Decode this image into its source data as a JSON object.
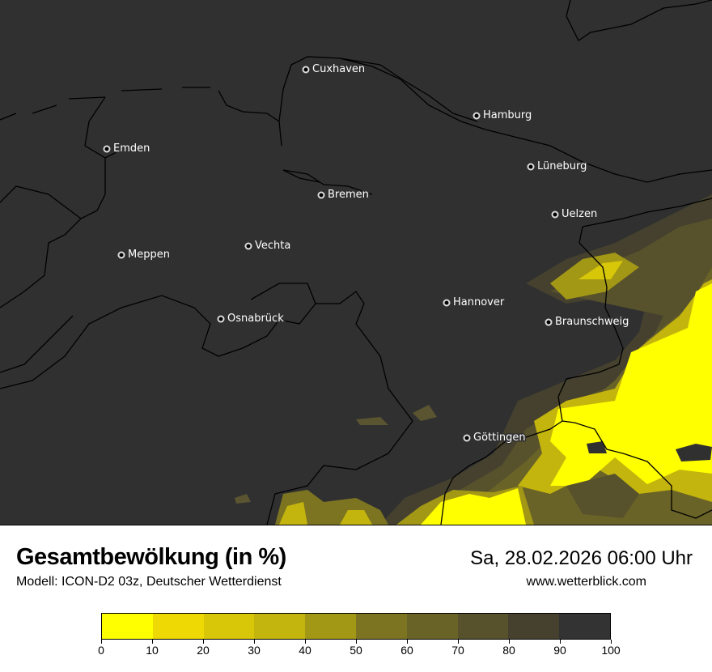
{
  "header": {
    "title": "Gesamtbewölkung (in %)",
    "subtitle": "Modell: ICON-D2 03z, Deutscher Wetterdienst",
    "datetime": "Sa, 28.02.2026 06:00 Uhr",
    "website": "www.wetterblick.com"
  },
  "map": {
    "background_color": "#303030",
    "cities": [
      {
        "name": "Cuxhaven"
      },
      {
        "name": "Hamburg"
      },
      {
        "name": "Emden"
      },
      {
        "name": "Lüneburg"
      },
      {
        "name": "Bremen"
      },
      {
        "name": "Uelzen"
      },
      {
        "name": "Vechta"
      },
      {
        "name": "Meppen"
      },
      {
        "name": "Hannover"
      },
      {
        "name": "Osnabrück"
      },
      {
        "name": "Braunschweig"
      },
      {
        "name": "Göttingen"
      }
    ]
  },
  "legend": {
    "unit": "%",
    "tick_labels": [
      "0",
      "10",
      "20",
      "30",
      "40",
      "50",
      "60",
      "70",
      "80",
      "90",
      "100"
    ],
    "colors": [
      "#ffff00",
      "#eed904",
      "#d8c708",
      "#c4b50e",
      "#a39716",
      "#7d7421",
      "#6a6327",
      "#57522c",
      "#45412e",
      "#333333"
    ]
  }
}
